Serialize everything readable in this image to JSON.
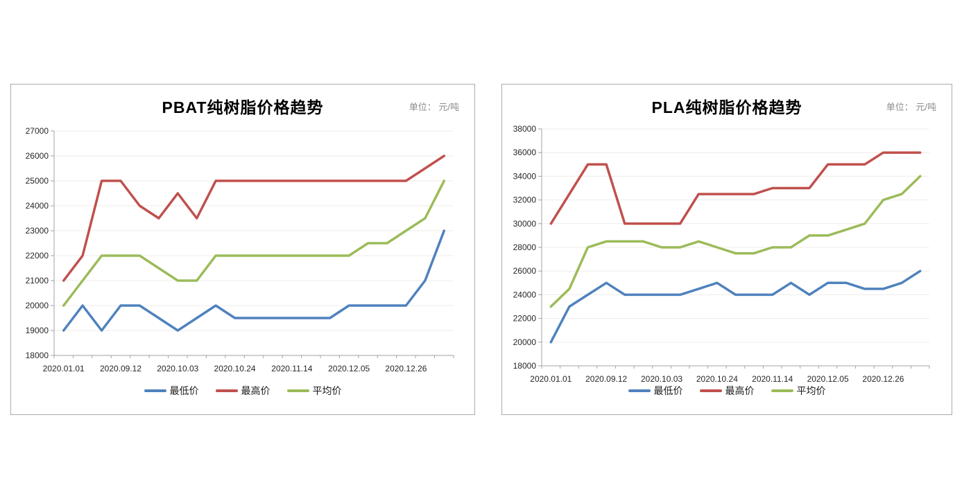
{
  "page": {
    "background": "#ffffff"
  },
  "colors": {
    "axis": "#a3a3a3",
    "grid": "#efecea",
    "tick_text": "#262626",
    "unit_text": "#8c8c8c",
    "card_border": "#ababab"
  },
  "chart_data": [
    {
      "type": "line",
      "title": "PBAT纯树脂价格趋势",
      "unit_label": "单位： 元/吨",
      "categories_count": 21,
      "x_tick_labels": [
        "2020.01.01",
        "2020.09.12",
        "2020.10.03",
        "2020.10.24",
        "2020.11.14",
        "2020.12.05",
        "2020.12.26"
      ],
      "x_tick_indices": [
        0,
        3,
        6,
        9,
        12,
        15,
        18
      ],
      "ylim": [
        18000,
        27000
      ],
      "y_step": 1000,
      "grid": true,
      "legend_position": "bottom",
      "series": [
        {
          "name": "最低价",
          "color": "#4F81BD",
          "values": [
            19000,
            20000,
            19000,
            20000,
            20000,
            19500,
            19000,
            19500,
            20000,
            19500,
            19500,
            19500,
            19500,
            19500,
            19500,
            20000,
            20000,
            20000,
            20000,
            21000,
            23000
          ]
        },
        {
          "name": "最高价",
          "color": "#C0504D",
          "values": [
            21000,
            22000,
            25000,
            25000,
            24000,
            23500,
            24500,
            23500,
            25000,
            25000,
            25000,
            25000,
            25000,
            25000,
            25000,
            25000,
            25000,
            25000,
            25000,
            25500,
            26000
          ]
        },
        {
          "name": "平均价",
          "color": "#9BBB59",
          "values": [
            20000,
            21000,
            22000,
            22000,
            22000,
            21500,
            21000,
            21000,
            22000,
            22000,
            22000,
            22000,
            22000,
            22000,
            22000,
            22000,
            22500,
            22500,
            23000,
            23500,
            25000
          ]
        }
      ]
    },
    {
      "type": "line",
      "title": "PLA纯树脂价格趋势",
      "unit_label": "单位： 元/吨",
      "categories_count": 21,
      "x_tick_labels": [
        "2020.01.01",
        "2020.09.12",
        "2020.10.03",
        "2020.10.24",
        "2020.11.14",
        "2020.12.05",
        "2020.12.26"
      ],
      "x_tick_indices": [
        0,
        3,
        6,
        9,
        12,
        15,
        18
      ],
      "ylim": [
        18000,
        38000
      ],
      "y_step": 2000,
      "grid": true,
      "legend_position": "bottom",
      "series": [
        {
          "name": "最低价",
          "color": "#4F81BD",
          "values": [
            20000,
            23000,
            24000,
            25000,
            24000,
            24000,
            24000,
            24000,
            24500,
            25000,
            24000,
            24000,
            24000,
            25000,
            24000,
            25000,
            25000,
            24500,
            24500,
            25000,
            26000
          ]
        },
        {
          "name": "最高价",
          "color": "#C0504D",
          "values": [
            30000,
            32500,
            35000,
            35000,
            30000,
            30000,
            30000,
            30000,
            32500,
            32500,
            32500,
            32500,
            33000,
            33000,
            33000,
            35000,
            35000,
            35000,
            36000,
            36000,
            36000
          ]
        },
        {
          "name": "平均价",
          "color": "#9BBB59",
          "values": [
            23000,
            24500,
            28000,
            28500,
            28500,
            28500,
            28000,
            28000,
            28500,
            28000,
            27500,
            27500,
            28000,
            28000,
            29000,
            29000,
            29500,
            30000,
            32000,
            32500,
            34000
          ]
        }
      ]
    }
  ]
}
